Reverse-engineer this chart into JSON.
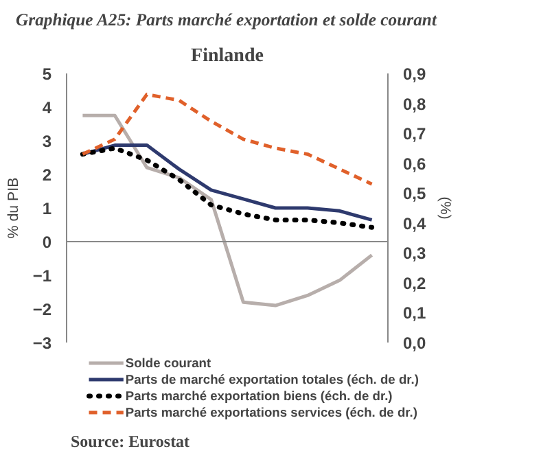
{
  "chart_data": {
    "type": "line",
    "title": "Graphique A25:  Parts marché exportation et solde courant",
    "subtitle": "Finlande",
    "ylabel": "% du PIB",
    "y2label": "(%)",
    "categories": [
      null,
      null,
      null,
      null,
      null,
      null,
      null,
      null,
      null,
      null
    ],
    "series": [
      {
        "name": "Solde courant",
        "color": "#b7aeab",
        "values": [
          3.75,
          3.75,
          2.2,
          1.9,
          1.25,
          -1.8,
          -1.9,
          -1.6,
          -1.15,
          -0.4
        ],
        "line_style": "solid"
      },
      {
        "name": "Parts de marché exportation totales (éch. de dr.)",
        "color": "#2e3a6e",
        "axis": "y2",
        "values": [
          0.63,
          0.66,
          0.66,
          0.58,
          0.51,
          0.48,
          0.45,
          0.45,
          0.44,
          0.41
        ],
        "line_style": "solid"
      },
      {
        "name": "Parts marché exportation biens (éch. de dr.)",
        "color": "#000000",
        "axis": "y2",
        "values": [
          0.63,
          0.65,
          0.61,
          0.545,
          0.46,
          0.43,
          0.41,
          0.41,
          0.4,
          0.385
        ],
        "line_style": "dotted"
      },
      {
        "name": "Parts marché exportations services (éch. de dr.)",
        "color": "#e0602a",
        "axis": "y2",
        "values": [
          0.63,
          0.68,
          0.83,
          0.81,
          0.74,
          0.68,
          0.65,
          0.63,
          0.58,
          0.53
        ],
        "line_style": "dashed"
      }
    ],
    "ylim": [
      -3,
      5
    ],
    "yticks": [
      -3,
      -2,
      -1,
      0,
      1,
      2,
      3,
      4,
      5
    ],
    "y2lim": [
      0,
      0.9
    ],
    "y2ticks": [
      {
        "value": 0,
        "label": "0,0"
      },
      {
        "value": 0.1,
        "label": "0,1"
      },
      {
        "value": 0.2,
        "label": "0,2"
      },
      {
        "value": 0.3,
        "label": "0,3"
      },
      {
        "value": 0.4,
        "label": "0,4"
      },
      {
        "value": 0.5,
        "label": "0,5"
      },
      {
        "value": 0.6,
        "label": "0,6"
      },
      {
        "value": 0.7,
        "label": "0,7"
      },
      {
        "value": 0.8,
        "label": "0,8"
      },
      {
        "value": 0.9,
        "label": "0,9"
      }
    ],
    "ref_lines": [
      {
        "axis": "y",
        "value": 0,
        "color": "#888888"
      }
    ],
    "tick_labels": "y",
    "grid": false,
    "legend": "bottom",
    "marker": "none",
    "annotations": [
      "Source: Eurostat"
    ]
  }
}
